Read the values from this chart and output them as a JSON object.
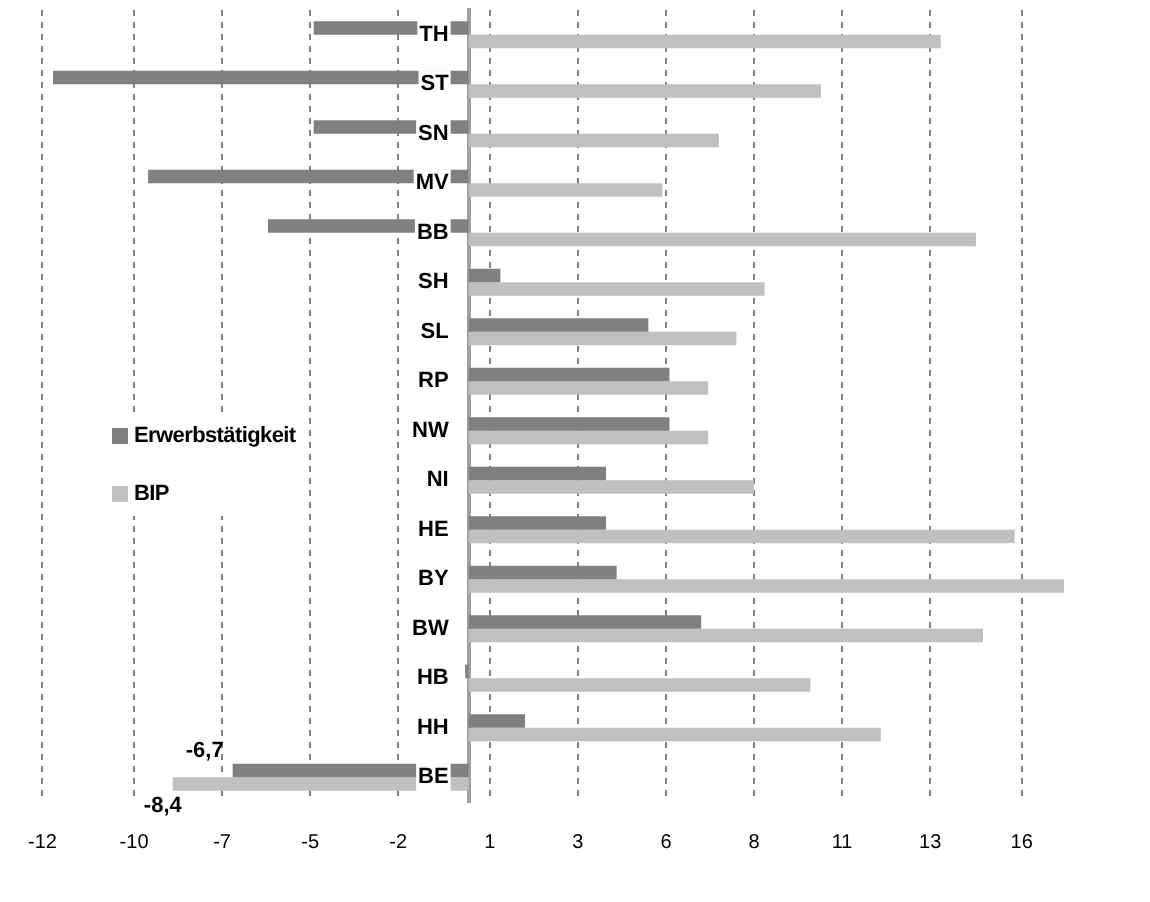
{
  "chart_data": {
    "type": "bar",
    "orientation": "horizontal",
    "categories": [
      "TH",
      "ST",
      "SN",
      "MV",
      "BB",
      "SH",
      "SL",
      "RP",
      "NW",
      "NI",
      "HE",
      "BY",
      "BW",
      "HB",
      "HH",
      "BE"
    ],
    "series": [
      {
        "name": "Erwerbstätigkeit",
        "color": "#808080",
        "values": [
          -4.4,
          -11.8,
          -4.4,
          -9.1,
          -5.7,
          0.9,
          5.1,
          5.7,
          5.7,
          3.9,
          3.9,
          4.2,
          6.6,
          -0.1,
          1.6,
          -6.7
        ],
        "value_labels": [
          null,
          null,
          null,
          null,
          null,
          null,
          null,
          null,
          null,
          null,
          null,
          null,
          null,
          null,
          null,
          "-6,7"
        ]
      },
      {
        "name": "BIP",
        "color": "#c0c0c0",
        "values": [
          13.4,
          10.0,
          7.1,
          5.5,
          14.4,
          8.4,
          7.6,
          6.8,
          6.8,
          8.1,
          15.5,
          16.9,
          14.6,
          9.7,
          11.7,
          -8.4
        ],
        "value_labels": [
          null,
          null,
          null,
          null,
          null,
          null,
          null,
          null,
          null,
          null,
          null,
          null,
          null,
          null,
          null,
          "-8,4"
        ]
      }
    ],
    "xlim": [
      -12.1,
      16.9
    ],
    "xticks": [
      {
        "value": -12.1,
        "label": "-12"
      },
      {
        "value": -9.5,
        "label": "-10"
      },
      -7,
      {
        "value": -4.5,
        "label": "-5"
      },
      -2,
      {
        "value": 0.6,
        "label": "1"
      },
      {
        "value": 3.1,
        "label": "3"
      },
      {
        "value": 5.6,
        "label": "6"
      },
      {
        "value": 8.1,
        "label": "8"
      },
      {
        "value": 10.6,
        "label": "11"
      },
      {
        "value": 13.1,
        "label": "13"
      },
      {
        "value": 15.7,
        "label": "16"
      }
    ],
    "grid": "x",
    "legend": "left"
  }
}
